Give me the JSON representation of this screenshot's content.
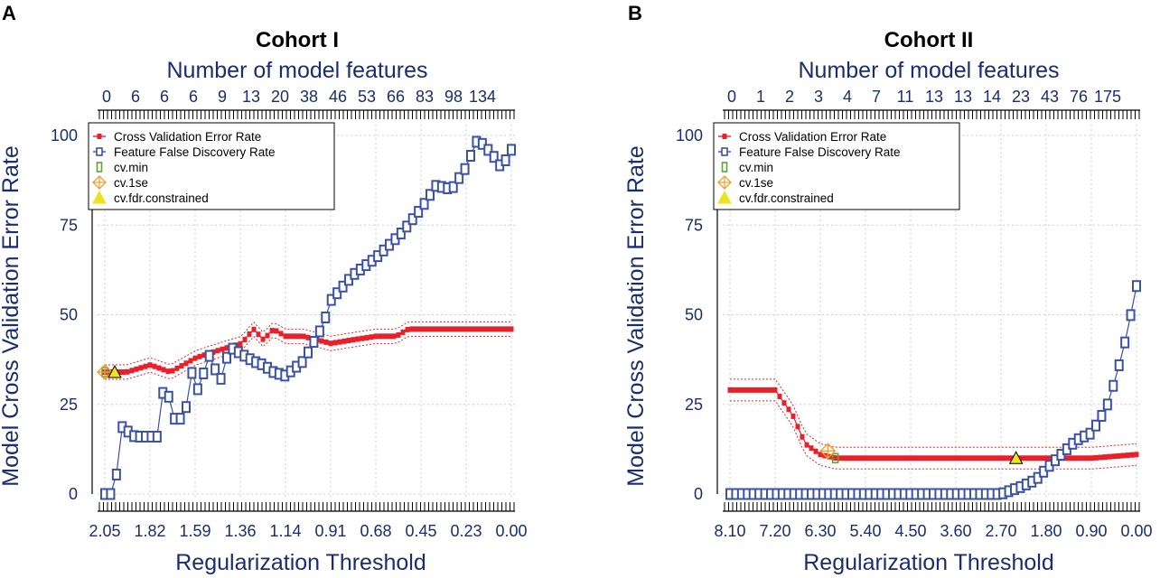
{
  "panels": [
    {
      "letter": "A",
      "title": "Cohort I",
      "top_axis_title": "Number of model features",
      "top_tick_labels": [
        "0",
        "6",
        "6",
        "6",
        "9",
        "13",
        "20",
        "38",
        "46",
        "53",
        "66",
        "83",
        "98",
        "134"
      ],
      "xlabel": "Regularization Threshold",
      "ylabel": "Model Cross Validation Error Rate",
      "bottom_tick_labels": [
        "2.05",
        "1.82",
        "1.59",
        "1.36",
        "1.14",
        "0.91",
        "0.68",
        "0.45",
        "0.23",
        "0.00"
      ],
      "y_tick_labels": [
        "0",
        "25",
        "50",
        "75",
        "100"
      ],
      "legend": [
        "Cross Validation Error Rate",
        "Feature False Discovery Rate",
        "cv.min",
        "cv.1se",
        "cv.fdr.constrained"
      ]
    },
    {
      "letter": "B",
      "title": "Cohort II",
      "top_axis_title": "Number of model features",
      "top_tick_labels": [
        "0",
        "1",
        "2",
        "3",
        "4",
        "7",
        "11",
        "13",
        "13",
        "14",
        "23",
        "43",
        "76",
        "175"
      ],
      "xlabel": "Regularization Threshold",
      "ylabel": "Model Cross Validation Error Rate",
      "bottom_tick_labels": [
        "8.10",
        "7.20",
        "6.30",
        "5.40",
        "4.50",
        "3.60",
        "2.70",
        "1.80",
        "0.90",
        "0.00"
      ],
      "y_tick_labels": [
        "0",
        "25",
        "50",
        "75",
        "100"
      ],
      "legend": [
        "Cross Validation Error Rate",
        "Feature False Discovery Rate",
        "cv.min",
        "cv.1se",
        "cv.fdr.constrained"
      ]
    }
  ],
  "colors": {
    "cv_error": "#e8202a",
    "fdr": "#3b51a3",
    "cv_min": "#5aa832",
    "cv_1se": "#f0a030",
    "cv_fdr_constrained": "#ece31e",
    "axis_text": "#1a2d6e"
  },
  "chart_data": [
    {
      "type": "line",
      "title": "Cohort I",
      "xlabel": "Regularization Threshold",
      "ylabel": "Model Cross Validation Error Rate",
      "x_direction": "decreasing",
      "xlim": [
        2.05,
        0.0
      ],
      "ylim": [
        0,
        100
      ],
      "legend_position": "top-left",
      "series": [
        {
          "name": "Cross Validation Error Rate",
          "x": [
            2.05,
            1.94,
            1.82,
            1.72,
            1.59,
            1.48,
            1.36,
            1.3,
            1.25,
            1.2,
            1.14,
            1.05,
            0.91,
            0.8,
            0.68,
            0.58,
            0.52,
            0.45,
            0.3,
            0.23,
            0.1,
            0.0
          ],
          "y": [
            34,
            34,
            36,
            34,
            38,
            40,
            42,
            46,
            43,
            46,
            44,
            44,
            42,
            43,
            44,
            44,
            46,
            46,
            46,
            46,
            46,
            46
          ],
          "band": 2
        },
        {
          "name": "Feature False Discovery Rate",
          "x": [
            2.05,
            2.0,
            1.97,
            1.9,
            1.82,
            1.78,
            1.75,
            1.7,
            1.65,
            1.61,
            1.58,
            1.52,
            1.47,
            1.42,
            1.36,
            1.3,
            1.25,
            1.2,
            1.14,
            1.05,
            0.95,
            0.91,
            0.8,
            0.68,
            0.55,
            0.45,
            0.38,
            0.3,
            0.23,
            0.17,
            0.1,
            0.05,
            0.0
          ],
          "y": [
            0,
            0,
            19,
            16,
            16,
            16,
            32,
            21,
            21,
            34,
            29,
            39,
            31,
            41,
            39,
            37,
            36,
            34,
            33,
            37,
            47,
            54,
            61,
            66,
            73,
            80,
            86,
            85,
            91,
            99,
            95,
            91,
            96
          ]
        }
      ],
      "markers": [
        {
          "name": "cv.min",
          "x": 2.05,
          "y": 34
        },
        {
          "name": "cv.1se",
          "x": 2.05,
          "y": 34
        },
        {
          "name": "cv.fdr.constrained",
          "x": 2.0,
          "y": 34
        }
      ]
    },
    {
      "type": "line",
      "title": "Cohort II",
      "xlabel": "Regularization Threshold",
      "ylabel": "Model Cross Validation Error Rate",
      "x_direction": "decreasing",
      "xlim": [
        8.1,
        0.0
      ],
      "ylim": [
        0,
        100
      ],
      "legend_position": "top-left",
      "series": [
        {
          "name": "Cross Validation Error Rate",
          "x": [
            8.1,
            7.2,
            6.85,
            6.6,
            6.3,
            6.0,
            5.4,
            4.5,
            3.6,
            2.7,
            2.4,
            1.8,
            0.9,
            0.0
          ],
          "y": [
            29,
            29,
            22,
            14,
            11,
            10,
            10,
            10,
            10,
            10,
            10,
            10,
            10,
            11
          ],
          "band": 3
        },
        {
          "name": "Feature False Discovery Rate",
          "x": [
            8.1,
            5.4,
            2.7,
            2.3,
            2.0,
            1.8,
            1.5,
            1.2,
            0.9,
            0.6,
            0.4,
            0.2,
            0.0
          ],
          "y": [
            0,
            0,
            0,
            2,
            4,
            7,
            11,
            15,
            17,
            24,
            33,
            44,
            58
          ]
        }
      ],
      "markers": [
        {
          "name": "cv.min",
          "x": 6.0,
          "y": 10
        },
        {
          "name": "cv.1se",
          "x": 6.15,
          "y": 12
        },
        {
          "name": "cv.fdr.constrained",
          "x": 2.4,
          "y": 10
        }
      ]
    }
  ]
}
